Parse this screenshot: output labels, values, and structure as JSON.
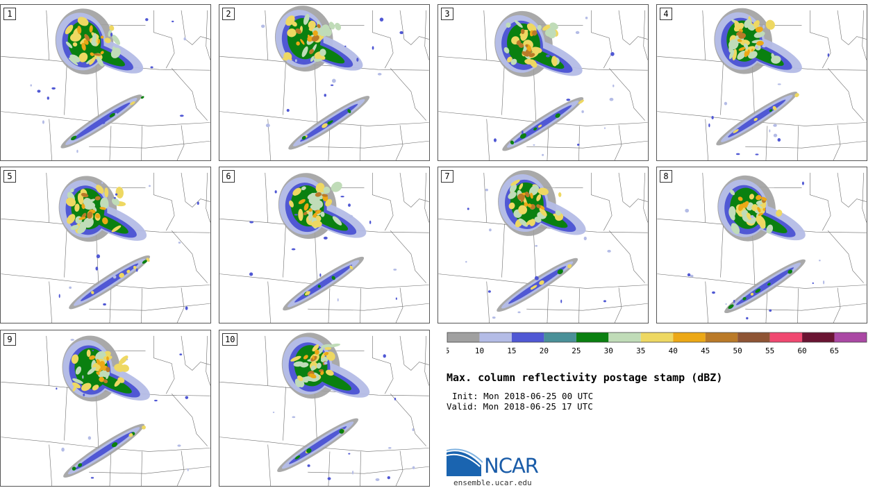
{
  "panels": [
    {
      "label": "1"
    },
    {
      "label": "2"
    },
    {
      "label": "3"
    },
    {
      "label": "4"
    },
    {
      "label": "5"
    },
    {
      "label": "6"
    },
    {
      "label": "7"
    },
    {
      "label": "8"
    },
    {
      "label": "9"
    },
    {
      "label": "10"
    }
  ],
  "colorbar": {
    "colors": [
      "#a0a0a0",
      "#b4bce6",
      "#5058d4",
      "#4a9098",
      "#0a8010",
      "#c0dcb8",
      "#eed862",
      "#eca816",
      "#ba7a28",
      "#8e5434",
      "#f04870",
      "#6a1432",
      "#aa48a4"
    ],
    "tick_labels": [
      "5",
      "10",
      "15",
      "20",
      "25",
      "30",
      "35",
      "40",
      "45",
      "50",
      "55",
      "60",
      "65"
    ]
  },
  "title": "Max. column reflectivity postage stamp (dBZ)",
  "init": "Init: Mon 2018-06-25 00 UTC",
  "valid": "Valid: Mon 2018-06-25 17 UTC",
  "logo_text": "NCAR",
  "url": "ensemble.ucar.edu"
}
